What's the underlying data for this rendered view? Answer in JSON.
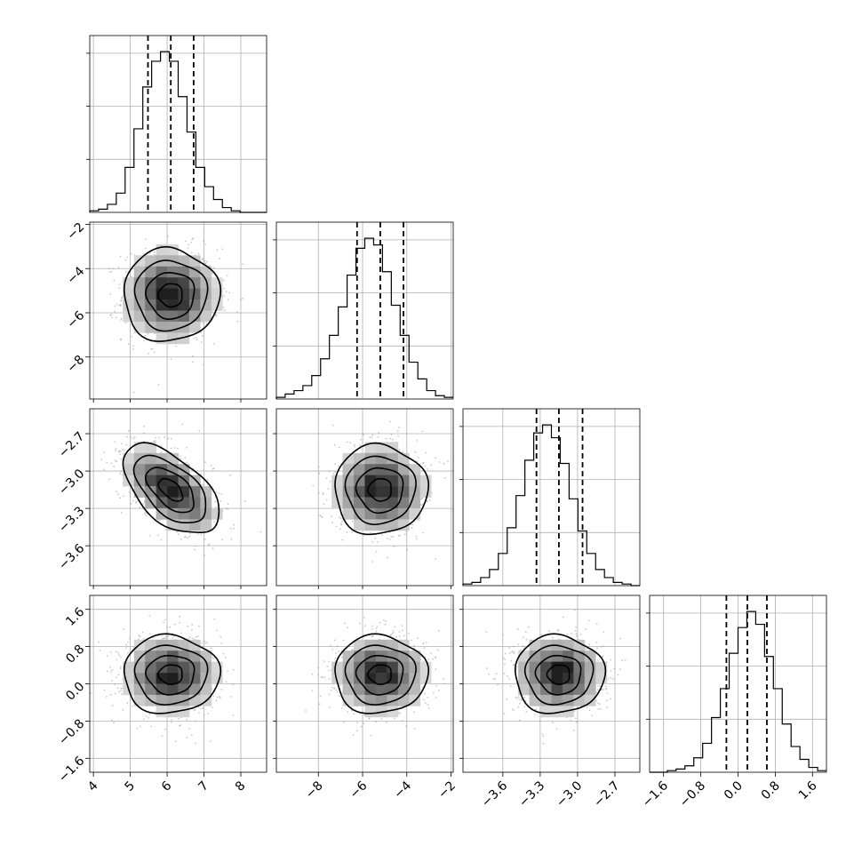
{
  "chart_data": {
    "type": "corner",
    "n_params": 4,
    "grid": true,
    "parameters": [
      {
        "range": [
          3.9,
          8.7
        ],
        "ticks": [
          4,
          5,
          6,
          7,
          8
        ],
        "tick_labels": [
          "4",
          "5",
          "6",
          "7",
          "8"
        ],
        "mean": 6.1,
        "sigma": 0.65,
        "quantiles": [
          5.48,
          6.1,
          6.72
        ]
      },
      {
        "range": [
          -9.9,
          -1.9
        ],
        "ticks": [
          -8,
          -6,
          -4,
          -2
        ],
        "tick_labels": [
          "−8",
          "−6",
          "−4",
          "−2"
        ],
        "mean": -5.2,
        "sigma": 1.05,
        "quantiles": [
          -6.25,
          -5.2,
          -4.15
        ]
      },
      {
        "range": [
          -3.92,
          -2.5
        ],
        "ticks": [
          -3.6,
          -3.3,
          -3.0,
          -2.7
        ],
        "tick_labels": [
          "−3.6",
          "−3.3",
          "−3.0",
          "−2.7"
        ],
        "mean": -3.15,
        "sigma": 0.18,
        "quantiles": [
          -3.33,
          -3.15,
          -2.96
        ]
      },
      {
        "range": [
          -1.9,
          1.9
        ],
        "ticks": [
          -1.6,
          -0.8,
          0.0,
          0.8,
          1.6
        ],
        "tick_labels": [
          "−1.6",
          "−0.8",
          "0.0",
          "0.8",
          "1.6"
        ],
        "mean": 0.2,
        "sigma": 0.42,
        "quantiles": [
          -0.25,
          0.2,
          0.62
        ]
      }
    ],
    "histograms": [
      {
        "bin_edges_start": 3.9,
        "bin_width": 0.24,
        "counts": [
          1,
          2,
          5,
          12,
          28,
          52,
          78,
          94,
          100,
          94,
          72,
          50,
          28,
          16,
          8,
          3,
          1,
          0,
          0,
          0
        ]
      },
      {
        "bin_edges_start": -9.9,
        "bin_width": 0.4,
        "counts": [
          1,
          3,
          5,
          8,
          14,
          24,
          38,
          55,
          74,
          90,
          96,
          92,
          76,
          56,
          38,
          22,
          12,
          5,
          2,
          1
        ]
      },
      {
        "bin_edges_start": -3.92,
        "bin_width": 0.071,
        "counts": [
          1,
          2,
          5,
          10,
          20,
          36,
          56,
          78,
          95,
          100,
          92,
          76,
          54,
          34,
          20,
          10,
          5,
          2,
          1,
          0
        ]
      },
      {
        "bin_edges_start": -1.9,
        "bin_width": 0.19,
        "counts": [
          0,
          0,
          1,
          2,
          4,
          9,
          18,
          34,
          52,
          74,
          90,
          100,
          92,
          72,
          52,
          30,
          16,
          8,
          3,
          1
        ]
      }
    ],
    "correlations": [
      {
        "row": 1,
        "col": 0,
        "rho": 0.0
      },
      {
        "row": 2,
        "col": 0,
        "rho": -0.55
      },
      {
        "row": 2,
        "col": 1,
        "rho": 0.0
      },
      {
        "row": 3,
        "col": 0,
        "rho": 0.0
      },
      {
        "row": 3,
        "col": 1,
        "rho": 0.0
      },
      {
        "row": 3,
        "col": 2,
        "rho": 0.0
      }
    ],
    "contour_levels_sigma": [
      0.5,
      1.0,
      1.5,
      2.0
    ]
  }
}
